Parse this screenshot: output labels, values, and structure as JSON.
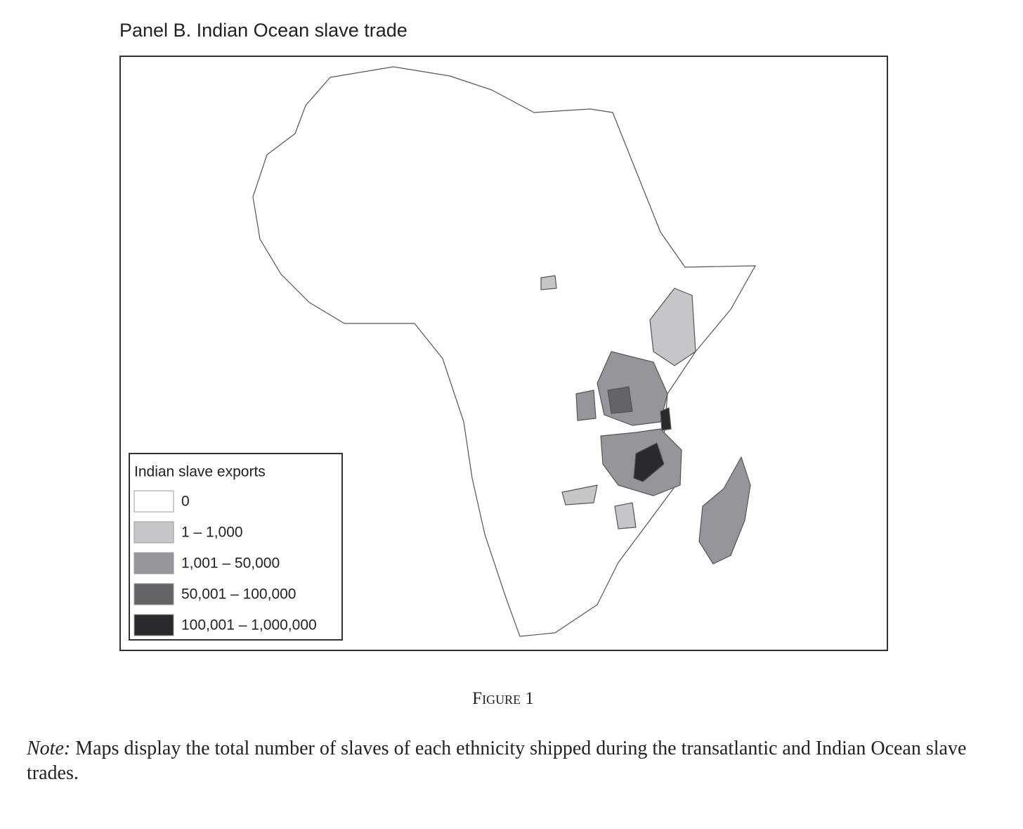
{
  "header": {
    "title": "Panel B. Indian Ocean slave trade"
  },
  "legend": {
    "title": "Indian slave exports",
    "items": [
      {
        "label": "0",
        "color": "#ffffff"
      },
      {
        "label": "1 – 1,000",
        "color": "#c6c6c8"
      },
      {
        "label": "1,001 – 50,000",
        "color": "#96969a"
      },
      {
        "label": "50,001 – 100,000",
        "color": "#646467"
      },
      {
        "label": "100,001 – 1,000,000",
        "color": "#2a2a2c"
      }
    ]
  },
  "caption": "Figure 1",
  "note": {
    "lead": "Note:",
    "text": "Maps display the total number of slaves of each ethnicity shipped during the transatlantic and Indian Ocean slave trades."
  }
}
